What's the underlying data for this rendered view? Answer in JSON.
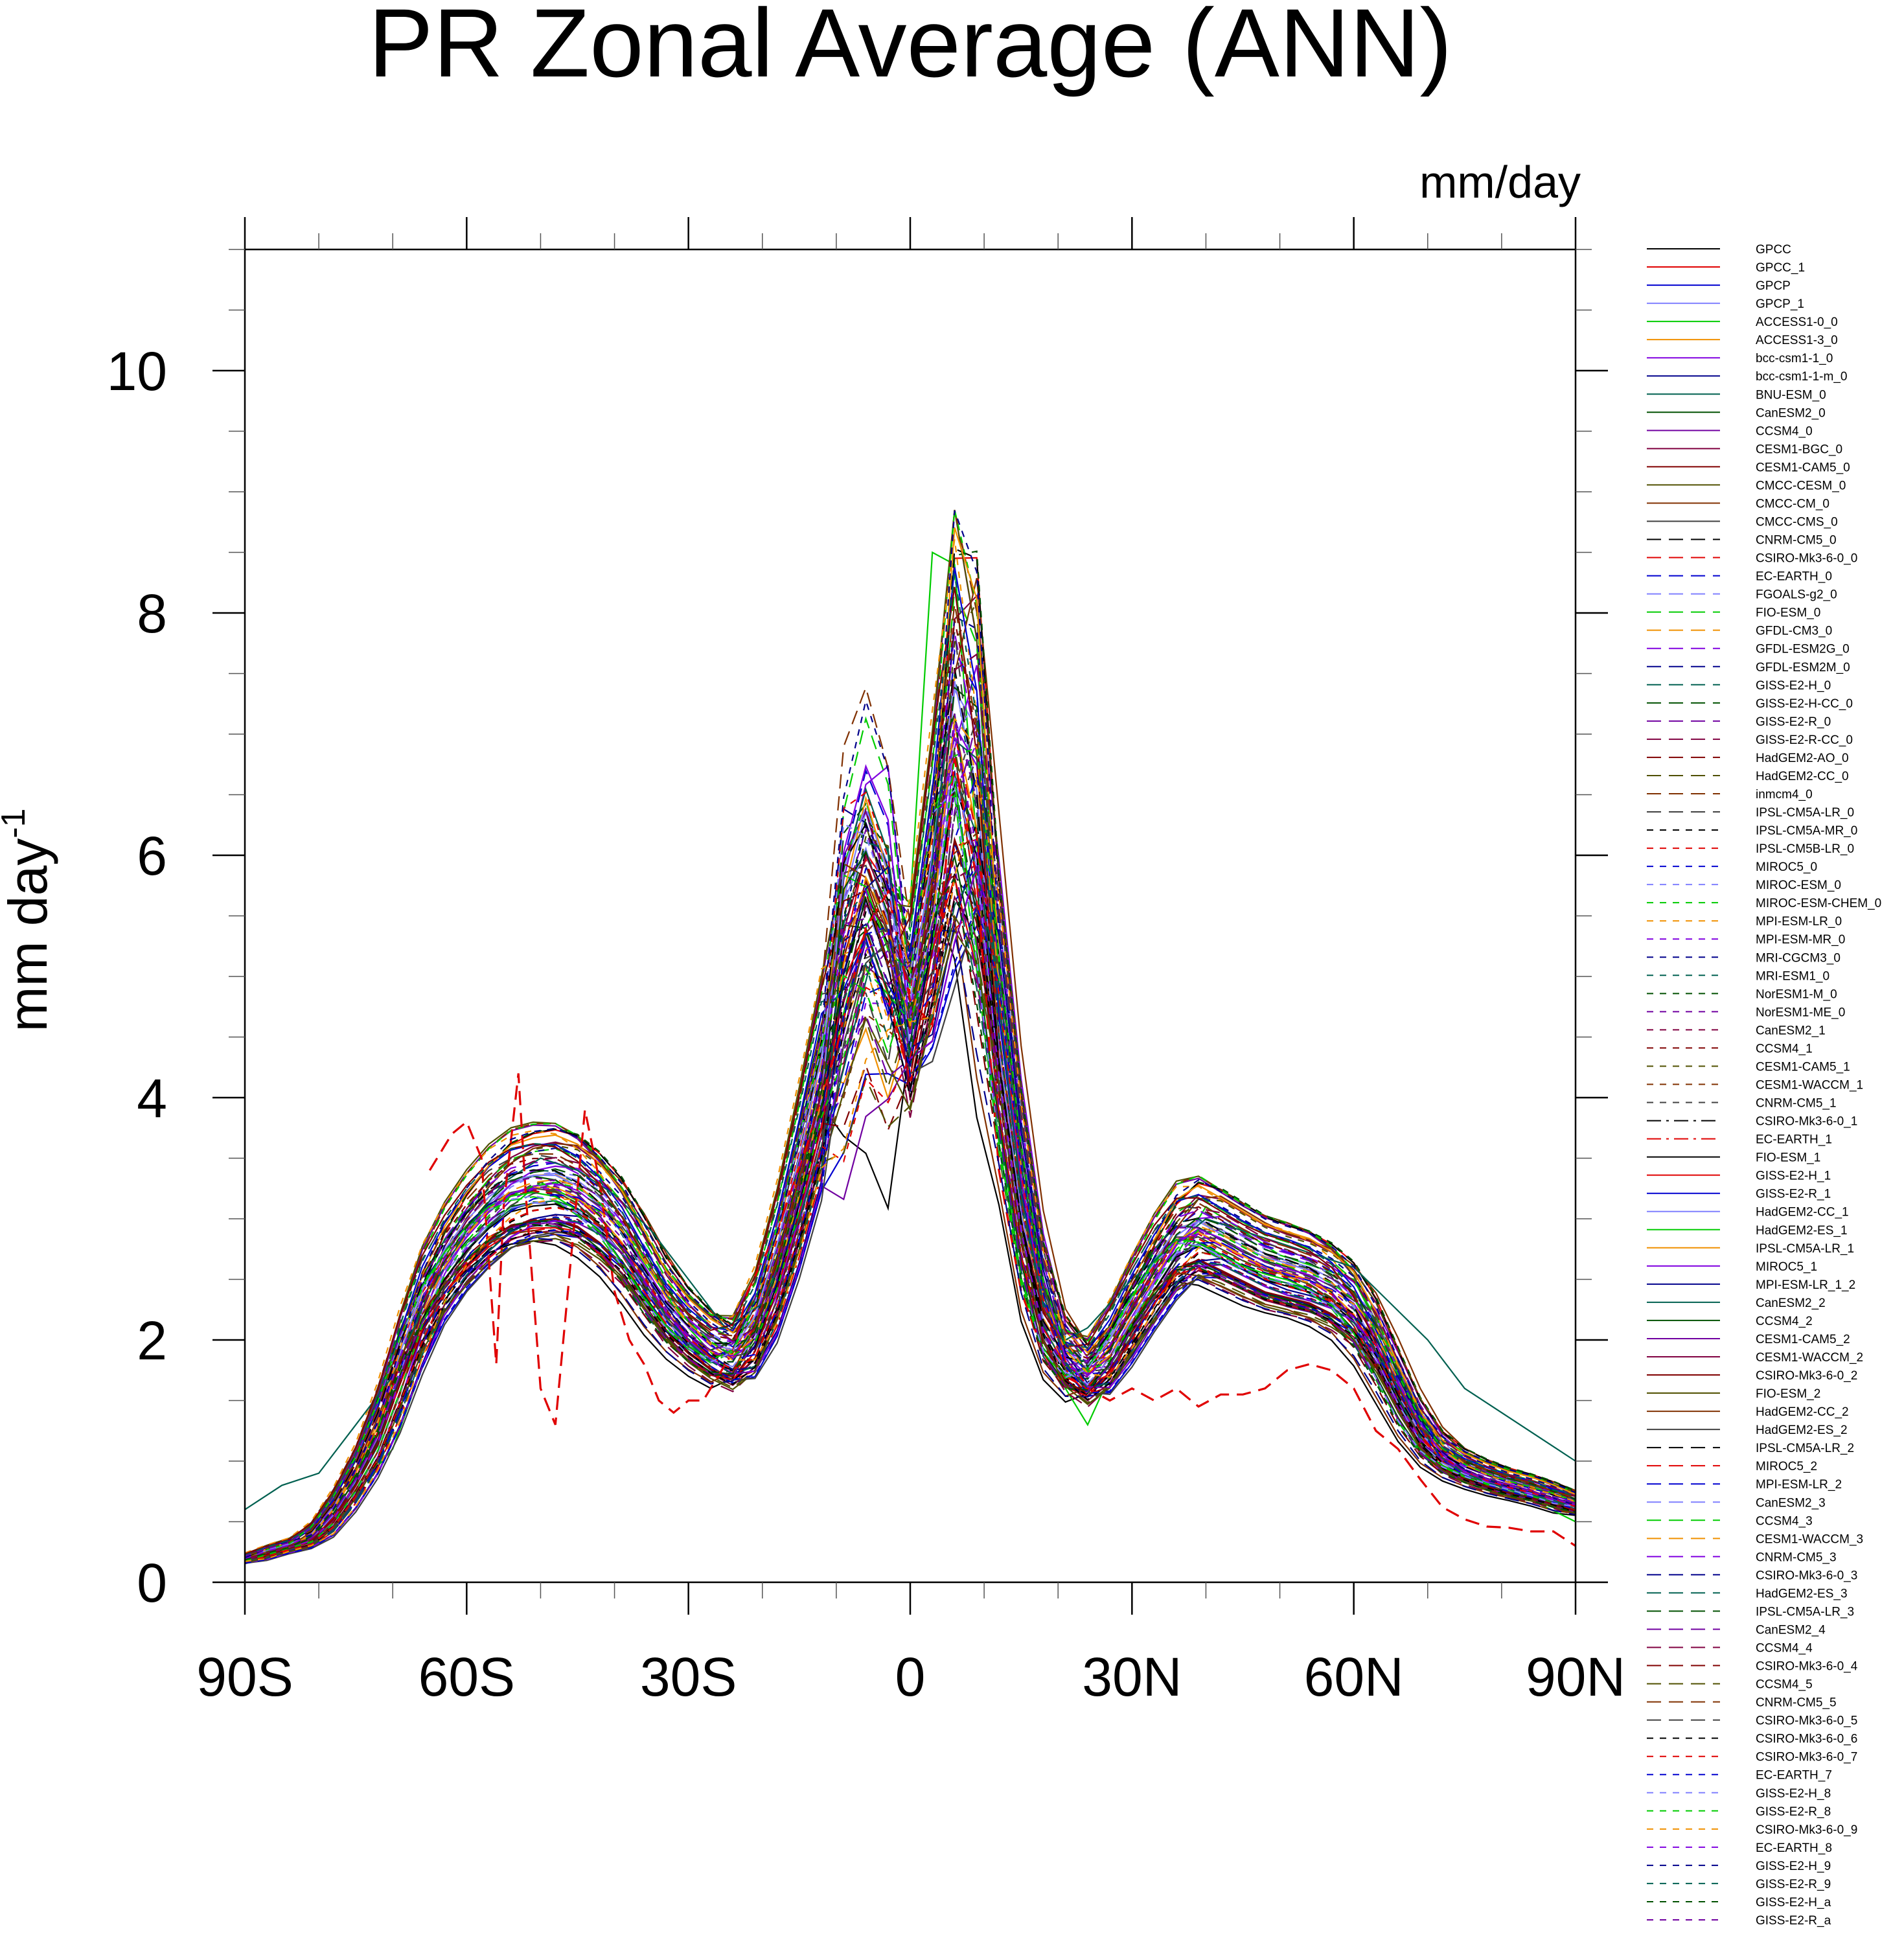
{
  "chart_data": {
    "type": "line",
    "title": "PR Zonal Average (ANN)",
    "units_label": "mm/day",
    "ylabel": "mm day",
    "ylabel_superscript": "-1",
    "xlim": [
      -90,
      90
    ],
    "ylim": [
      0,
      11
    ],
    "x_ticks": [
      -90,
      -60,
      -30,
      0,
      30,
      60,
      90
    ],
    "x_tick_labels": [
      "90S",
      "60S",
      "30S",
      "0",
      "30N",
      "60N",
      "90N"
    ],
    "y_ticks": [
      0,
      2,
      4,
      6,
      8,
      10
    ],
    "y_tick_labels": [
      "0",
      "2",
      "4",
      "6",
      "8",
      "10"
    ],
    "legend": [
      {
        "name": "GPCC",
        "color": "#000000",
        "dash": "solid"
      },
      {
        "name": "GPCC_1",
        "color": "#e00000",
        "dash": "solid"
      },
      {
        "name": "GPCP",
        "color": "#0000d0",
        "dash": "solid"
      },
      {
        "name": "GPCP_1",
        "color": "#8080ff",
        "dash": "solid"
      },
      {
        "name": "ACCESS1-0_0",
        "color": "#00cc00",
        "dash": "solid"
      },
      {
        "name": "ACCESS1-3_0",
        "color": "#f09000",
        "dash": "solid"
      },
      {
        "name": "bcc-csm1-1_0",
        "color": "#8000e0",
        "dash": "solid"
      },
      {
        "name": "bcc-csm1-1-m_0",
        "color": "#00008b",
        "dash": "solid"
      },
      {
        "name": "BNU-ESM_0",
        "color": "#006050",
        "dash": "solid"
      },
      {
        "name": "CanESM2_0",
        "color": "#005000",
        "dash": "solid"
      },
      {
        "name": "CCSM4_0",
        "color": "#7000a0",
        "dash": "solid"
      },
      {
        "name": "CESM1-BGC_0",
        "color": "#800040",
        "dash": "solid"
      },
      {
        "name": "CESM1-CAM5_0",
        "color": "#800000",
        "dash": "solid"
      },
      {
        "name": "CMCC-CESM_0",
        "color": "#505000",
        "dash": "solid"
      },
      {
        "name": "CMCC-CM_0",
        "color": "#803000",
        "dash": "solid"
      },
      {
        "name": "CMCC-CMS_0",
        "color": "#404040",
        "dash": "solid"
      },
      {
        "name": "CNRM-CM5_0",
        "color": "#000000",
        "dash": "long"
      },
      {
        "name": "CSIRO-Mk3-6-0_0",
        "color": "#e00000",
        "dash": "long"
      },
      {
        "name": "EC-EARTH_0",
        "color": "#0000d0",
        "dash": "long"
      },
      {
        "name": "FGOALS-g2_0",
        "color": "#8080ff",
        "dash": "long"
      },
      {
        "name": "FIO-ESM_0",
        "color": "#00cc00",
        "dash": "long"
      },
      {
        "name": "GFDL-CM3_0",
        "color": "#f09000",
        "dash": "long"
      },
      {
        "name": "GFDL-ESM2G_0",
        "color": "#8000e0",
        "dash": "long"
      },
      {
        "name": "GFDL-ESM2M_0",
        "color": "#00008b",
        "dash": "long"
      },
      {
        "name": "GISS-E2-H_0",
        "color": "#006050",
        "dash": "long"
      },
      {
        "name": "GISS-E2-H-CC_0",
        "color": "#005000",
        "dash": "long"
      },
      {
        "name": "GISS-E2-R_0",
        "color": "#7000a0",
        "dash": "long"
      },
      {
        "name": "GISS-E2-R-CC_0",
        "color": "#800040",
        "dash": "long"
      },
      {
        "name": "HadGEM2-AO_0",
        "color": "#800000",
        "dash": "long"
      },
      {
        "name": "HadGEM2-CC_0",
        "color": "#505000",
        "dash": "long"
      },
      {
        "name": "inmcm4_0",
        "color": "#803000",
        "dash": "long"
      },
      {
        "name": "IPSL-CM5A-LR_0",
        "color": "#404040",
        "dash": "long"
      },
      {
        "name": "IPSL-CM5A-MR_0",
        "color": "#000000",
        "dash": "short"
      },
      {
        "name": "IPSL-CM5B-LR_0",
        "color": "#e00000",
        "dash": "short"
      },
      {
        "name": "MIROC5_0",
        "color": "#0000d0",
        "dash": "short"
      },
      {
        "name": "MIROC-ESM_0",
        "color": "#8080ff",
        "dash": "short"
      },
      {
        "name": "MIROC-ESM-CHEM_0",
        "color": "#00cc00",
        "dash": "short"
      },
      {
        "name": "MPI-ESM-LR_0",
        "color": "#f09000",
        "dash": "short"
      },
      {
        "name": "MPI-ESM-MR_0",
        "color": "#8000e0",
        "dash": "short"
      },
      {
        "name": "MRI-CGCM3_0",
        "color": "#00008b",
        "dash": "short"
      },
      {
        "name": "MRI-ESM1_0",
        "color": "#006050",
        "dash": "short"
      },
      {
        "name": "NorESM1-M_0",
        "color": "#005000",
        "dash": "short"
      },
      {
        "name": "NorESM1-ME_0",
        "color": "#7000a0",
        "dash": "short"
      },
      {
        "name": "CanESM2_1",
        "color": "#800040",
        "dash": "short"
      },
      {
        "name": "CCSM4_1",
        "color": "#800000",
        "dash": "short"
      },
      {
        "name": "CESM1-CAM5_1",
        "color": "#505000",
        "dash": "short"
      },
      {
        "name": "CESM1-WACCM_1",
        "color": "#803000",
        "dash": "short"
      },
      {
        "name": "CNRM-CM5_1",
        "color": "#404040",
        "dash": "short"
      },
      {
        "name": "CSIRO-Mk3-6-0_1",
        "color": "#000000",
        "dash": "dashdot"
      },
      {
        "name": "EC-EARTH_1",
        "color": "#e00000",
        "dash": "dashdot"
      },
      {
        "name": "FIO-ESM_1",
        "color": "#000000",
        "dash": "solid"
      },
      {
        "name": "GISS-E2-H_1",
        "color": "#e00000",
        "dash": "solid"
      },
      {
        "name": "GISS-E2-R_1",
        "color": "#0000d0",
        "dash": "solid"
      },
      {
        "name": "HadGEM2-CC_1",
        "color": "#8080ff",
        "dash": "solid"
      },
      {
        "name": "HadGEM2-ES_1",
        "color": "#00cc00",
        "dash": "solid"
      },
      {
        "name": "IPSL-CM5A-LR_1",
        "color": "#f09000",
        "dash": "solid"
      },
      {
        "name": "MIROC5_1",
        "color": "#8000e0",
        "dash": "solid"
      },
      {
        "name": "MPI-ESM-LR_1_2",
        "color": "#00008b",
        "dash": "solid"
      },
      {
        "name": "CanESM2_2",
        "color": "#006050",
        "dash": "solid"
      },
      {
        "name": "CCSM4_2",
        "color": "#005000",
        "dash": "solid"
      },
      {
        "name": "CESM1-CAM5_2",
        "color": "#7000a0",
        "dash": "solid"
      },
      {
        "name": "CESM1-WACCM_2",
        "color": "#800040",
        "dash": "solid"
      },
      {
        "name": "CSIRO-Mk3-6-0_2",
        "color": "#800000",
        "dash": "solid"
      },
      {
        "name": "FIO-ESM_2",
        "color": "#505000",
        "dash": "solid"
      },
      {
        "name": "HadGEM2-CC_2",
        "color": "#803000",
        "dash": "solid"
      },
      {
        "name": "HadGEM2-ES_2",
        "color": "#404040",
        "dash": "solid"
      },
      {
        "name": "IPSL-CM5A-LR_2",
        "color": "#000000",
        "dash": "long"
      },
      {
        "name": "MIROC5_2",
        "color": "#e00000",
        "dash": "long"
      },
      {
        "name": "MPI-ESM-LR_2",
        "color": "#0000d0",
        "dash": "long"
      },
      {
        "name": "CanESM2_3",
        "color": "#8080ff",
        "dash": "long"
      },
      {
        "name": "CCSM4_3",
        "color": "#00cc00",
        "dash": "long"
      },
      {
        "name": "CESM1-WACCM_3",
        "color": "#f09000",
        "dash": "long"
      },
      {
        "name": "CNRM-CM5_3",
        "color": "#8000e0",
        "dash": "long"
      },
      {
        "name": "CSIRO-Mk3-6-0_3",
        "color": "#00008b",
        "dash": "long"
      },
      {
        "name": "HadGEM2-ES_3",
        "color": "#006050",
        "dash": "long"
      },
      {
        "name": "IPSL-CM5A-LR_3",
        "color": "#005000",
        "dash": "long"
      },
      {
        "name": "CanESM2_4",
        "color": "#7000a0",
        "dash": "long"
      },
      {
        "name": "CCSM4_4",
        "color": "#800040",
        "dash": "long"
      },
      {
        "name": "CSIRO-Mk3-6-0_4",
        "color": "#800000",
        "dash": "long"
      },
      {
        "name": "CCSM4_5",
        "color": "#505000",
        "dash": "long"
      },
      {
        "name": "CNRM-CM5_5",
        "color": "#803000",
        "dash": "long"
      },
      {
        "name": "CSIRO-Mk3-6-0_5",
        "color": "#404040",
        "dash": "long"
      },
      {
        "name": "CSIRO-Mk3-6-0_6",
        "color": "#000000",
        "dash": "short"
      },
      {
        "name": "CSIRO-Mk3-6-0_7",
        "color": "#e00000",
        "dash": "short"
      },
      {
        "name": "EC-EARTH_7",
        "color": "#0000d0",
        "dash": "short"
      },
      {
        "name": "GISS-E2-H_8",
        "color": "#8080ff",
        "dash": "short"
      },
      {
        "name": "GISS-E2-R_8",
        "color": "#00cc00",
        "dash": "short"
      },
      {
        "name": "CSIRO-Mk3-6-0_9",
        "color": "#f09000",
        "dash": "short"
      },
      {
        "name": "EC-EARTH_8",
        "color": "#8000e0",
        "dash": "short"
      },
      {
        "name": "GISS-E2-H_9",
        "color": "#00008b",
        "dash": "short"
      },
      {
        "name": "GISS-E2-R_9",
        "color": "#006050",
        "dash": "short"
      },
      {
        "name": "GISS-E2-H_a",
        "color": "#005000",
        "dash": "short"
      },
      {
        "name": "GISS-E2-R_a",
        "color": "#7000a0",
        "dash": "short"
      }
    ],
    "base_profile": {
      "lat": [
        -90,
        -87,
        -84,
        -81,
        -78,
        -75,
        -72,
        -69,
        -66,
        -63,
        -60,
        -57,
        -54,
        -51,
        -48,
        -45,
        -42,
        -39,
        -36,
        -33,
        -30,
        -27,
        -24,
        -21,
        -18,
        -15,
        -12,
        -9,
        -6,
        -3,
        0,
        3,
        6,
        9,
        12,
        15,
        18,
        21,
        24,
        27,
        30,
        33,
        36,
        39,
        42,
        45,
        48,
        51,
        54,
        57,
        60,
        63,
        66,
        69,
        72,
        75,
        78,
        81,
        84,
        87,
        90
      ],
      "value": [
        0.18,
        0.25,
        0.3,
        0.35,
        0.55,
        0.85,
        1.2,
        1.75,
        2.3,
        2.65,
        2.9,
        3.1,
        3.25,
        3.3,
        3.32,
        3.25,
        3.1,
        2.9,
        2.6,
        2.3,
        2.1,
        1.95,
        1.85,
        2.05,
        2.6,
        3.3,
        4.1,
        4.9,
        5.6,
        5.0,
        4.5,
        5.6,
        7.2,
        6.6,
        4.6,
        3.2,
        2.2,
        1.85,
        1.7,
        1.9,
        2.25,
        2.55,
        2.85,
        2.95,
        2.85,
        2.75,
        2.65,
        2.6,
        2.55,
        2.45,
        2.3,
        2.0,
        1.6,
        1.25,
        1.05,
        0.95,
        0.88,
        0.82,
        0.78,
        0.72,
        0.65
      ]
    },
    "highlighted_series": [
      {
        "name": "MIROC5_2",
        "lat": [
          -65,
          -62,
          -60,
          -58,
          -56,
          -55,
          -53,
          -52,
          -50,
          -48,
          -46,
          -44,
          -42,
          -40,
          -38,
          -36,
          -34,
          -32,
          -30,
          -28,
          -26,
          -24,
          -22,
          -18,
          -14,
          -10,
          -6,
          -3,
          0,
          3,
          6,
          9,
          12,
          15,
          18,
          21,
          24,
          27,
          30,
          33,
          36,
          39,
          42,
          45,
          48,
          51,
          54,
          57,
          60,
          63,
          66,
          69,
          72,
          75,
          78,
          81,
          84,
          87,
          90
        ],
        "value": [
          3.4,
          3.7,
          3.8,
          3.5,
          1.8,
          3.1,
          4.2,
          3.2,
          1.6,
          1.3,
          2.6,
          3.9,
          3.3,
          2.4,
          2.0,
          1.8,
          1.5,
          1.4,
          1.5,
          1.5,
          1.7,
          1.9,
          2.4,
          2.9,
          3.6,
          4.4,
          5.4,
          5.7,
          4.8,
          4.6,
          6.8,
          5.8,
          3.4,
          2.4,
          1.9,
          1.7,
          1.6,
          1.5,
          1.6,
          1.5,
          1.6,
          1.45,
          1.55,
          1.55,
          1.6,
          1.75,
          1.8,
          1.75,
          1.6,
          1.25,
          1.1,
          0.85,
          0.62,
          0.52,
          0.46,
          0.45,
          0.42,
          0.42,
          0.3
        ]
      },
      {
        "name": "ACCESS1-0_0",
        "lat": [
          -90,
          -80,
          -70,
          -60,
          -50,
          -40,
          -30,
          -24,
          -18,
          -12,
          -6,
          -3,
          0,
          3,
          6,
          9,
          12,
          15,
          18,
          21,
          24,
          30,
          40,
          50,
          60,
          70,
          80,
          90
        ],
        "value": [
          0.2,
          0.4,
          1.1,
          2.8,
          3.3,
          3.0,
          2.1,
          1.7,
          2.6,
          4.0,
          5.4,
          5.8,
          5.6,
          8.5,
          8.4,
          6.1,
          3.8,
          2.5,
          1.9,
          1.6,
          1.3,
          2.1,
          3.1,
          2.7,
          2.5,
          1.3,
          0.8,
          0.5
        ]
      },
      {
        "name": "CanESM2_2",
        "lat": [
          -90,
          -85,
          -80,
          -75,
          -70,
          -65,
          -60,
          -55,
          -50,
          -45,
          -40,
          -35,
          -30,
          -25,
          -20,
          -15,
          -10,
          -5,
          0,
          5,
          9,
          12,
          15,
          18,
          21,
          24,
          30,
          40,
          50,
          55,
          60,
          65,
          70,
          75,
          80,
          85,
          90
        ],
        "value": [
          0.6,
          0.8,
          0.9,
          1.3,
          1.7,
          2.4,
          2.9,
          3.3,
          3.5,
          3.4,
          3.2,
          2.9,
          2.5,
          2.1,
          2.3,
          3.0,
          4.0,
          5.2,
          4.4,
          7.0,
          6.8,
          4.8,
          3.2,
          2.3,
          2.0,
          2.1,
          2.5,
          3.0,
          2.8,
          2.7,
          2.6,
          2.3,
          2.0,
          1.6,
          1.4,
          1.2,
          1.0
        ]
      }
    ]
  }
}
